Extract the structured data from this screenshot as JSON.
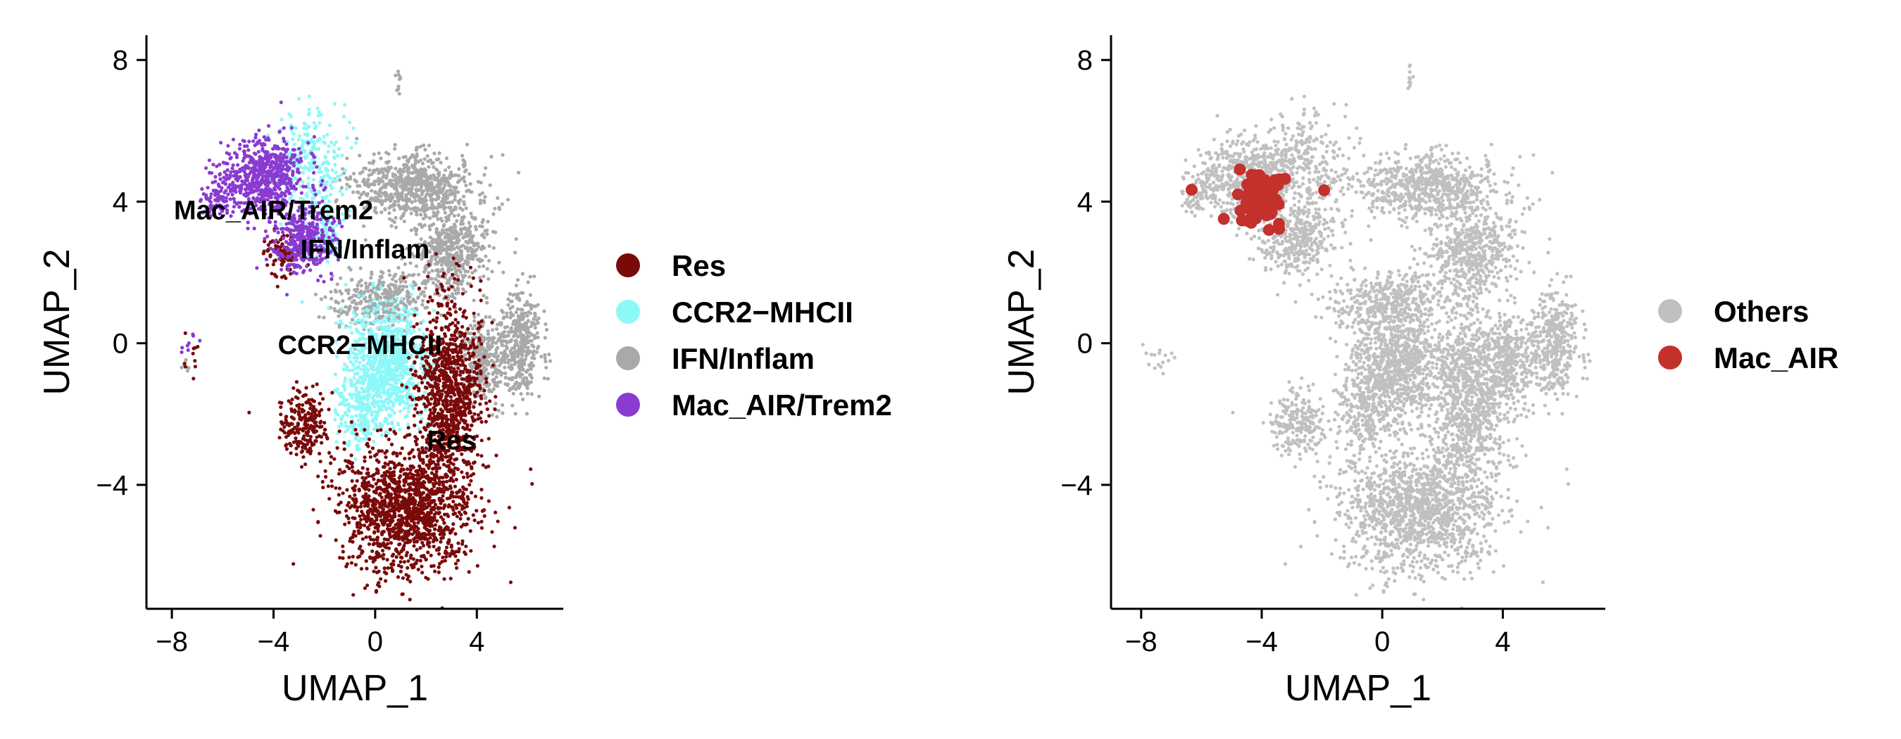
{
  "chart_data": [
    {
      "type": "scatter",
      "xlabel": "UMAP_1",
      "ylabel": "UMAP_2",
      "xlim": [
        -9,
        7.4
      ],
      "ylim": [
        -7.5,
        8.7
      ],
      "xticks": [
        -8,
        -4,
        0,
        4
      ],
      "yticks": [
        8,
        4,
        0,
        -4
      ],
      "xtick_labels": [
        "−8",
        "−4",
        "0",
        "4"
      ],
      "ytick_labels": [
        "8",
        "4",
        "0",
        "−4"
      ],
      "legend_position": "right",
      "legend": [
        {
          "label": "Res",
          "color": "#7a0a0a"
        },
        {
          "label": "CCR2−MHCII",
          "color": "#8df8f8"
        },
        {
          "label": "IFN/Inflam",
          "color": "#a9a9a9"
        },
        {
          "label": "Mac_AIR/Trem2",
          "color": "#8a3bd1"
        }
      ],
      "cluster_labels": [
        {
          "text": "Mac_AIR/Trem2",
          "x": -4.0,
          "y": 3.5
        },
        {
          "text": "IFN/Inflam",
          "x": -0.4,
          "y": 2.4
        },
        {
          "text": "CCR2−MHCII",
          "x": -0.6,
          "y": -0.3
        },
        {
          "text": "Res",
          "x": 3.0,
          "y": -3.0
        }
      ],
      "series": [
        {
          "name": "IFN/Inflam",
          "color": "#a9a9a9",
          "regions": [
            {
              "cx": 1.5,
              "cy": 4.4,
              "rx": 2.5,
              "ry": 0.9,
              "n": 700
            },
            {
              "cx": 3.0,
              "cy": 2.6,
              "rx": 1.5,
              "ry": 1.2,
              "n": 500
            },
            {
              "cx": 5.7,
              "cy": 0.0,
              "rx": 0.8,
              "ry": 1.5,
              "n": 400
            },
            {
              "cx": 0.2,
              "cy": 1.2,
              "rx": 1.8,
              "ry": 0.8,
              "n": 350
            },
            {
              "cx": 4.2,
              "cy": -0.4,
              "rx": 0.9,
              "ry": 1.3,
              "n": 300
            },
            {
              "cx": 0.9,
              "cy": 7.5,
              "rx": 0.12,
              "ry": 0.4,
              "n": 10
            },
            {
              "cx": -7.3,
              "cy": -0.6,
              "rx": 0.4,
              "ry": 0.2,
              "n": 6
            }
          ]
        },
        {
          "name": "CCR2−MHCII",
          "color": "#8df8f8",
          "regions": [
            {
              "cx": 0.5,
              "cy": -0.6,
              "rx": 1.6,
              "ry": 1.6,
              "n": 900
            },
            {
              "cx": -0.6,
              "cy": -2.0,
              "rx": 0.9,
              "ry": 1.0,
              "n": 200
            },
            {
              "cx": -2.5,
              "cy": 5.0,
              "rx": 1.3,
              "ry": 1.6,
              "n": 260
            },
            {
              "cx": -2.0,
              "cy": 3.0,
              "rx": 0.6,
              "ry": 0.8,
              "n": 90
            }
          ]
        },
        {
          "name": "Res",
          "color": "#7a0a0a",
          "regions": [
            {
              "cx": 1.2,
              "cy": -4.7,
              "rx": 2.6,
              "ry": 1.8,
              "n": 1300
            },
            {
              "cx": 2.9,
              "cy": -1.4,
              "rx": 1.3,
              "ry": 2.6,
              "n": 1000
            },
            {
              "cx": -2.8,
              "cy": -2.3,
              "rx": 0.9,
              "ry": 0.9,
              "n": 220
            },
            {
              "cx": -3.6,
              "cy": 2.5,
              "rx": 0.9,
              "ry": 0.6,
              "n": 100
            },
            {
              "cx": -7.2,
              "cy": -0.5,
              "rx": 0.4,
              "ry": 0.5,
              "n": 10
            }
          ]
        },
        {
          "name": "Mac_AIR/Trem2",
          "color": "#8a3bd1",
          "regions": [
            {
              "cx": -4.4,
              "cy": 4.7,
              "rx": 1.6,
              "ry": 1.1,
              "n": 650
            },
            {
              "cx": -2.8,
              "cy": 2.9,
              "rx": 1.2,
              "ry": 0.9,
              "n": 350
            },
            {
              "cx": -6.2,
              "cy": 4.1,
              "rx": 0.6,
              "ry": 0.5,
              "n": 70
            },
            {
              "cx": -7.4,
              "cy": 0.0,
              "rx": 0.5,
              "ry": 0.6,
              "n": 8
            }
          ]
        }
      ]
    },
    {
      "type": "scatter",
      "xlabel": "UMAP_1",
      "ylabel": "UMAP_2",
      "xlim": [
        -9,
        7.4
      ],
      "ylim": [
        -7.5,
        8.7
      ],
      "xticks": [
        -8,
        -4,
        0,
        4
      ],
      "yticks": [
        8,
        4,
        0,
        -4
      ],
      "xtick_labels": [
        "−8",
        "−4",
        "0",
        "4"
      ],
      "ytick_labels": [
        "8",
        "4",
        "0",
        "−4"
      ],
      "legend_position": "right",
      "legend": [
        {
          "label": "Others",
          "color": "#c0c0c0"
        },
        {
          "label": "Mac_AIR",
          "color": "#c4302b"
        }
      ],
      "series": [
        {
          "name": "Others",
          "color": "#c0c0c0",
          "regions": [
            {
              "cx": 1.5,
              "cy": 4.4,
              "rx": 2.5,
              "ry": 0.9,
              "n": 700
            },
            {
              "cx": 3.0,
              "cy": 2.6,
              "rx": 1.5,
              "ry": 1.2,
              "n": 500
            },
            {
              "cx": 5.7,
              "cy": 0.0,
              "rx": 0.8,
              "ry": 1.5,
              "n": 400
            },
            {
              "cx": 0.2,
              "cy": 1.2,
              "rx": 1.8,
              "ry": 0.8,
              "n": 350
            },
            {
              "cx": 4.2,
              "cy": -0.4,
              "rx": 0.9,
              "ry": 1.3,
              "n": 300
            },
            {
              "cx": 0.5,
              "cy": -0.6,
              "rx": 1.6,
              "ry": 1.6,
              "n": 900
            },
            {
              "cx": -0.6,
              "cy": -2.0,
              "rx": 0.9,
              "ry": 1.0,
              "n": 200
            },
            {
              "cx": -2.5,
              "cy": 5.0,
              "rx": 1.3,
              "ry": 1.6,
              "n": 260
            },
            {
              "cx": 1.2,
              "cy": -4.7,
              "rx": 2.6,
              "ry": 1.8,
              "n": 1300
            },
            {
              "cx": 2.9,
              "cy": -1.4,
              "rx": 1.3,
              "ry": 2.6,
              "n": 1000
            },
            {
              "cx": -2.8,
              "cy": -2.3,
              "rx": 0.9,
              "ry": 0.9,
              "n": 220
            },
            {
              "cx": -4.4,
              "cy": 4.7,
              "rx": 1.6,
              "ry": 1.1,
              "n": 650
            },
            {
              "cx": -2.8,
              "cy": 2.9,
              "rx": 1.2,
              "ry": 0.9,
              "n": 350
            },
            {
              "cx": -6.2,
              "cy": 4.1,
              "rx": 0.6,
              "ry": 0.5,
              "n": 70
            },
            {
              "cx": 0.9,
              "cy": 7.5,
              "rx": 0.12,
              "ry": 0.4,
              "n": 10
            },
            {
              "cx": -7.6,
              "cy": -0.3,
              "rx": 0.6,
              "ry": 0.5,
              "n": 16
            }
          ]
        },
        {
          "name": "Mac_AIR",
          "color": "#c4302b",
          "highlight": true,
          "regions": [
            {
              "cx": -4.1,
              "cy": 4.2,
              "rx": 0.75,
              "ry": 0.8,
              "n": 70
            },
            {
              "cx": -6.3,
              "cy": 4.3,
              "rx": 0.05,
              "ry": 0.05,
              "n": 1
            },
            {
              "cx": -1.9,
              "cy": 4.3,
              "rx": 0.05,
              "ry": 0.05,
              "n": 1
            }
          ]
        }
      ]
    }
  ]
}
